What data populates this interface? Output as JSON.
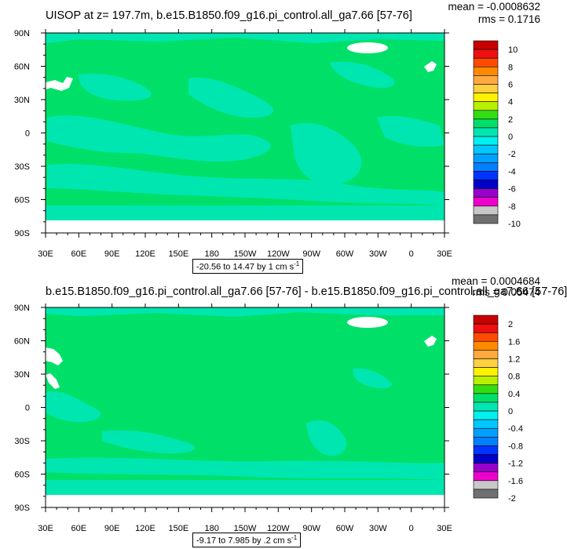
{
  "panels": [
    {
      "title": "UISOP at z= 197.7m, b.e15.B1850.f09_g16.pi_control.all_ga7.66 [57-76]",
      "mean_label": "mean = -0.0008632",
      "rms_label": "rms = 0.1716",
      "range_text": "-20.56 to 14.47 by 1 cm s",
      "range_unit_exp": "-1",
      "colorbar_labels": [
        "10",
        "8",
        "6",
        "4",
        "2",
        "0",
        "-2",
        "-4",
        "-6",
        "-8",
        "-10"
      ]
    },
    {
      "title": "b.e15.B1850.f09_g16.pi_control.all_ga7.66 [57-76] - b.e15.B1850.f09_g16.pi_control.all_ga7.66 [57-76]",
      "mean_label": "mean = 0.0004684",
      "rms_label": "rms = 0.05474",
      "range_text": "-9.17 to 7.985 by .2 cm s",
      "range_unit_exp": "-1",
      "colorbar_labels": [
        "2",
        "1.6",
        "1.2",
        "0.8",
        "0.4",
        "0",
        "-0.4",
        "-0.8",
        "-1.2",
        "-1.6",
        "-2"
      ]
    }
  ],
  "axes": {
    "x_ticks": [
      "30E",
      "60E",
      "90E",
      "120E",
      "150E",
      "180",
      "150W",
      "120W",
      "90W",
      "60W",
      "30W",
      "0",
      "30E"
    ],
    "y_ticks": [
      "90N",
      "60N",
      "30N",
      "0",
      "30S",
      "60S",
      "90S"
    ]
  },
  "colorbar_colors": [
    "#c80000",
    "#ee1010",
    "#ff4a00",
    "#ff8a00",
    "#ffaa40",
    "#ffd040",
    "#fff200",
    "#b8f000",
    "#33dd11",
    "#00e069",
    "#00e6b0",
    "#00f0f0",
    "#00c8ff",
    "#00a0ff",
    "#0080ff",
    "#0033ff",
    "#0000c8",
    "#9900cc",
    "#ee00cc",
    "#c8c8c8",
    "#707070"
  ],
  "map_colors": {
    "background": "#00e069",
    "band": "#00e6b0",
    "land": "#ffffff"
  },
  "chart_data": [
    {
      "type": "heatmap",
      "title": "UISOP at z= 197.7m, b.e15.B1850.f09_g16.pi_control.all_ga7.66 [57-76]",
      "x_range": [
        "30E",
        "30E (390)"
      ],
      "y_range": [
        -90,
        90
      ],
      "colorbar_levels": [
        -10,
        -9,
        -8,
        -7,
        -6,
        -5,
        -4,
        -3,
        -2,
        -1,
        0,
        1,
        2,
        3,
        4,
        5,
        6,
        7,
        8,
        9,
        10
      ],
      "mean": -0.0008632,
      "rms": 0.1716,
      "min": -20.56,
      "max": 14.47,
      "interval": 1,
      "units": "cm s-1"
    },
    {
      "type": "heatmap",
      "title": "b.e15.B1850.f09_g16.pi_control.all_ga7.66 [57-76] - b.e15.B1850.f09_g16.pi_control.all_ga7.66 [57-76]",
      "x_range": [
        "30E",
        "30E (390)"
      ],
      "y_range": [
        -90,
        90
      ],
      "colorbar_levels": [
        -2,
        -1.8,
        -1.6,
        -1.4,
        -1.2,
        -1,
        -0.8,
        -0.6,
        -0.4,
        -0.2,
        0,
        0.2,
        0.4,
        0.6,
        0.8,
        1,
        1.2,
        1.4,
        1.6,
        1.8,
        2
      ],
      "mean": 0.0004684,
      "rms": 0.05474,
      "min": -9.17,
      "max": 7.985,
      "interval": 0.2,
      "units": "cm s-1"
    }
  ]
}
